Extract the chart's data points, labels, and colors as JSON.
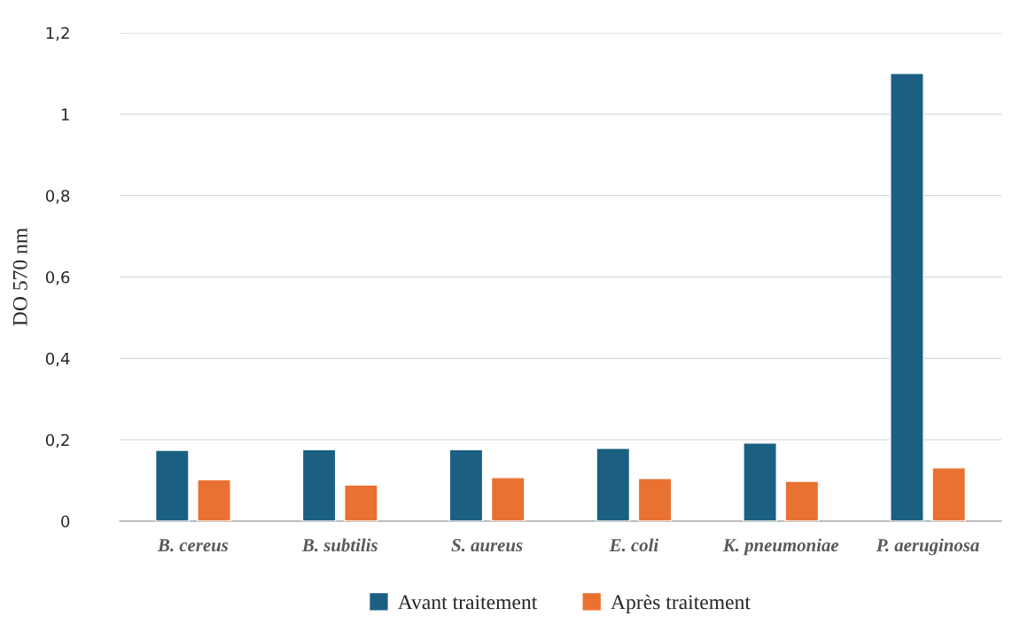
{
  "chart_data": {
    "type": "bar",
    "ylabel": "DO 570 nm",
    "categories": [
      "B. cereus",
      "B. subtilis",
      "S. aureus",
      "E. coli",
      "K. pneumoniae",
      "P. aeruginosa"
    ],
    "series": [
      {
        "name": "Avant traitement",
        "color": "#1b6083",
        "values": [
          0.174,
          0.176,
          0.176,
          0.179,
          0.192,
          1.1
        ]
      },
      {
        "name": "Après traitement",
        "color": "#e97132",
        "values": [
          0.102,
          0.089,
          0.107,
          0.105,
          0.098,
          0.131
        ]
      }
    ],
    "ylim": [
      0,
      1.2
    ],
    "yticks": [
      {
        "value": 0,
        "label": "0"
      },
      {
        "value": 0.2,
        "label": "0,2"
      },
      {
        "value": 0.4,
        "label": "0,4"
      },
      {
        "value": 0.6,
        "label": "0,6"
      },
      {
        "value": 0.8,
        "label": "0,8"
      },
      {
        "value": 1,
        "label": "1"
      },
      {
        "value": 1.2,
        "label": "1,2"
      }
    ],
    "grid": "y",
    "legend": "bottom"
  }
}
